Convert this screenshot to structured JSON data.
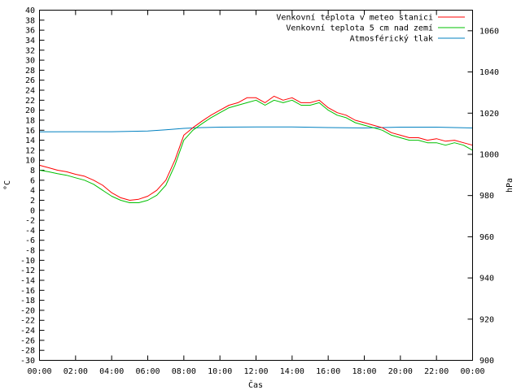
{
  "chart_data": {
    "type": "line",
    "xlabel": "Čas",
    "ylabel": "°C",
    "y2label": "hPa",
    "x_ticks": [
      "00:00",
      "02:00",
      "04:00",
      "06:00",
      "08:00",
      "10:00",
      "12:00",
      "14:00",
      "16:00",
      "18:00",
      "20:00",
      "22:00",
      "00:00"
    ],
    "xlim": [
      0,
      24
    ],
    "ylim": [
      -30,
      40
    ],
    "y_ticks": [
      40,
      38,
      36,
      34,
      32,
      30,
      28,
      26,
      24,
      22,
      20,
      18,
      16,
      14,
      12,
      10,
      8,
      6,
      4,
      2,
      0,
      -2,
      -4,
      -6,
      -8,
      -10,
      -12,
      -14,
      -16,
      -18,
      -20,
      -22,
      -24,
      -26,
      -28,
      -30
    ],
    "y2lim": [
      900,
      1070
    ],
    "y2_ticks": [
      1060,
      1040,
      1020,
      1000,
      980,
      960,
      940,
      920,
      900
    ],
    "grid": false,
    "legend_position": "top-right",
    "series": [
      {
        "name": "Venkovní teplota v meteo stanici",
        "color": "#ff0000",
        "axis": "left",
        "x": [
          0,
          0.5,
          1,
          1.5,
          2,
          2.5,
          3,
          3.5,
          4,
          4.5,
          5,
          5.5,
          6,
          6.5,
          7,
          7.5,
          8,
          8.5,
          9,
          9.5,
          10,
          10.5,
          11,
          11.5,
          12,
          12.5,
          13,
          13.5,
          14,
          14.5,
          15,
          15.5,
          16,
          16.5,
          17,
          17.5,
          18,
          18.5,
          19,
          19.5,
          20,
          20.5,
          21,
          21.5,
          22,
          22.5,
          23,
          23.5,
          24
        ],
        "values": [
          9,
          8.5,
          8,
          7.7,
          7.2,
          6.8,
          6,
          5,
          3.5,
          2.5,
          2,
          2.2,
          2.8,
          4,
          6,
          10,
          15,
          16.5,
          17.8,
          19,
          20,
          21,
          21.5,
          22.5,
          22.5,
          21.5,
          22.8,
          22,
          22.5,
          21.5,
          21.5,
          22,
          20.5,
          19.5,
          19,
          18,
          17.5,
          17,
          16.5,
          15.5,
          15,
          14.5,
          14.5,
          14,
          14.3,
          13.8,
          14,
          13.5,
          13
        ]
      },
      {
        "name": "Venkovní teplota 5 cm nad zemí",
        "color": "#00c000",
        "axis": "left",
        "x": [
          0,
          0.5,
          1,
          1.5,
          2,
          2.5,
          3,
          3.5,
          4,
          4.5,
          5,
          5.5,
          6,
          6.5,
          7,
          7.5,
          8,
          8.5,
          9,
          9.5,
          10,
          10.5,
          11,
          11.5,
          12,
          12.5,
          13,
          13.5,
          14,
          14.5,
          15,
          15.5,
          16,
          16.5,
          17,
          17.5,
          18,
          18.5,
          19,
          19.5,
          20,
          20.5,
          21,
          21.5,
          22,
          22.5,
          23,
          23.5,
          24
        ],
        "values": [
          8,
          7.7,
          7.3,
          7,
          6.5,
          6,
          5.2,
          4,
          2.8,
          2,
          1.5,
          1.5,
          2,
          3,
          5,
          9,
          14,
          16,
          17.3,
          18.5,
          19.5,
          20.5,
          21,
          21.5,
          22,
          21,
          22,
          21.5,
          22,
          21,
          21,
          21.5,
          20,
          19,
          18.5,
          17.5,
          17,
          16.5,
          16,
          15,
          14.5,
          14,
          14,
          13.5,
          13.5,
          13,
          13.5,
          13,
          12
        ]
      },
      {
        "name": "Atmosférický tlak",
        "color": "#0080c0",
        "axis": "right",
        "x": [
          0,
          2,
          4,
          6,
          7,
          8,
          9,
          10,
          12,
          14,
          16,
          18,
          20,
          22,
          24
        ],
        "values": [
          1010.9,
          1011,
          1011,
          1011.3,
          1011.9,
          1012.6,
          1013,
          1013.2,
          1013.3,
          1013.3,
          1013,
          1012.8,
          1013.2,
          1013.2,
          1012.8
        ]
      }
    ]
  }
}
